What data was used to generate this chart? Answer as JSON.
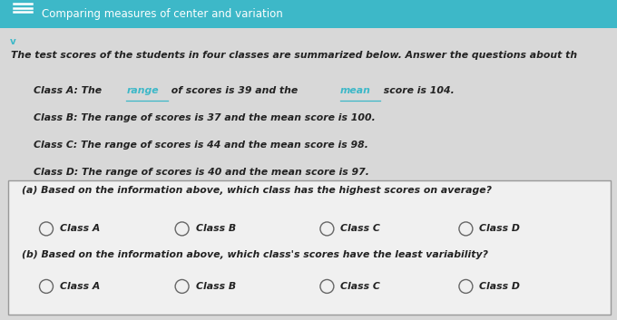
{
  "header_text": "Comparing measures of center and variation",
  "header_bg": "#3db8c8",
  "body_bg": "#d8d8d8",
  "intro_text": "The test scores of the students in four classes are summarized below. Answer the questions about th",
  "class_lines": [
    "Class B: The range of scores is 37 and the mean score is 100.",
    "Class C: The range of scores is 44 and the mean score is 98.",
    "Class D: The range of scores is 40 and the mean score is 97."
  ],
  "class_a_parts": [
    [
      "Class A: The ",
      false
    ],
    [
      "range",
      true
    ],
    [
      " of scores is 39 and the ",
      false
    ],
    [
      "mean",
      true
    ],
    [
      " score is 104.",
      false
    ]
  ],
  "question_a": "(a) Based on the information above, which class has the highest scores on average?",
  "question_b": "(b) Based on the information above, which class's scores have the least variability?",
  "radio_labels": [
    "Class A",
    "Class B",
    "Class C",
    "Class D"
  ],
  "box_bg": "#f0f0f0",
  "box_border": "#999999",
  "text_color": "#222222",
  "teal_color": "#3db8c8",
  "radio_color": "#666666"
}
